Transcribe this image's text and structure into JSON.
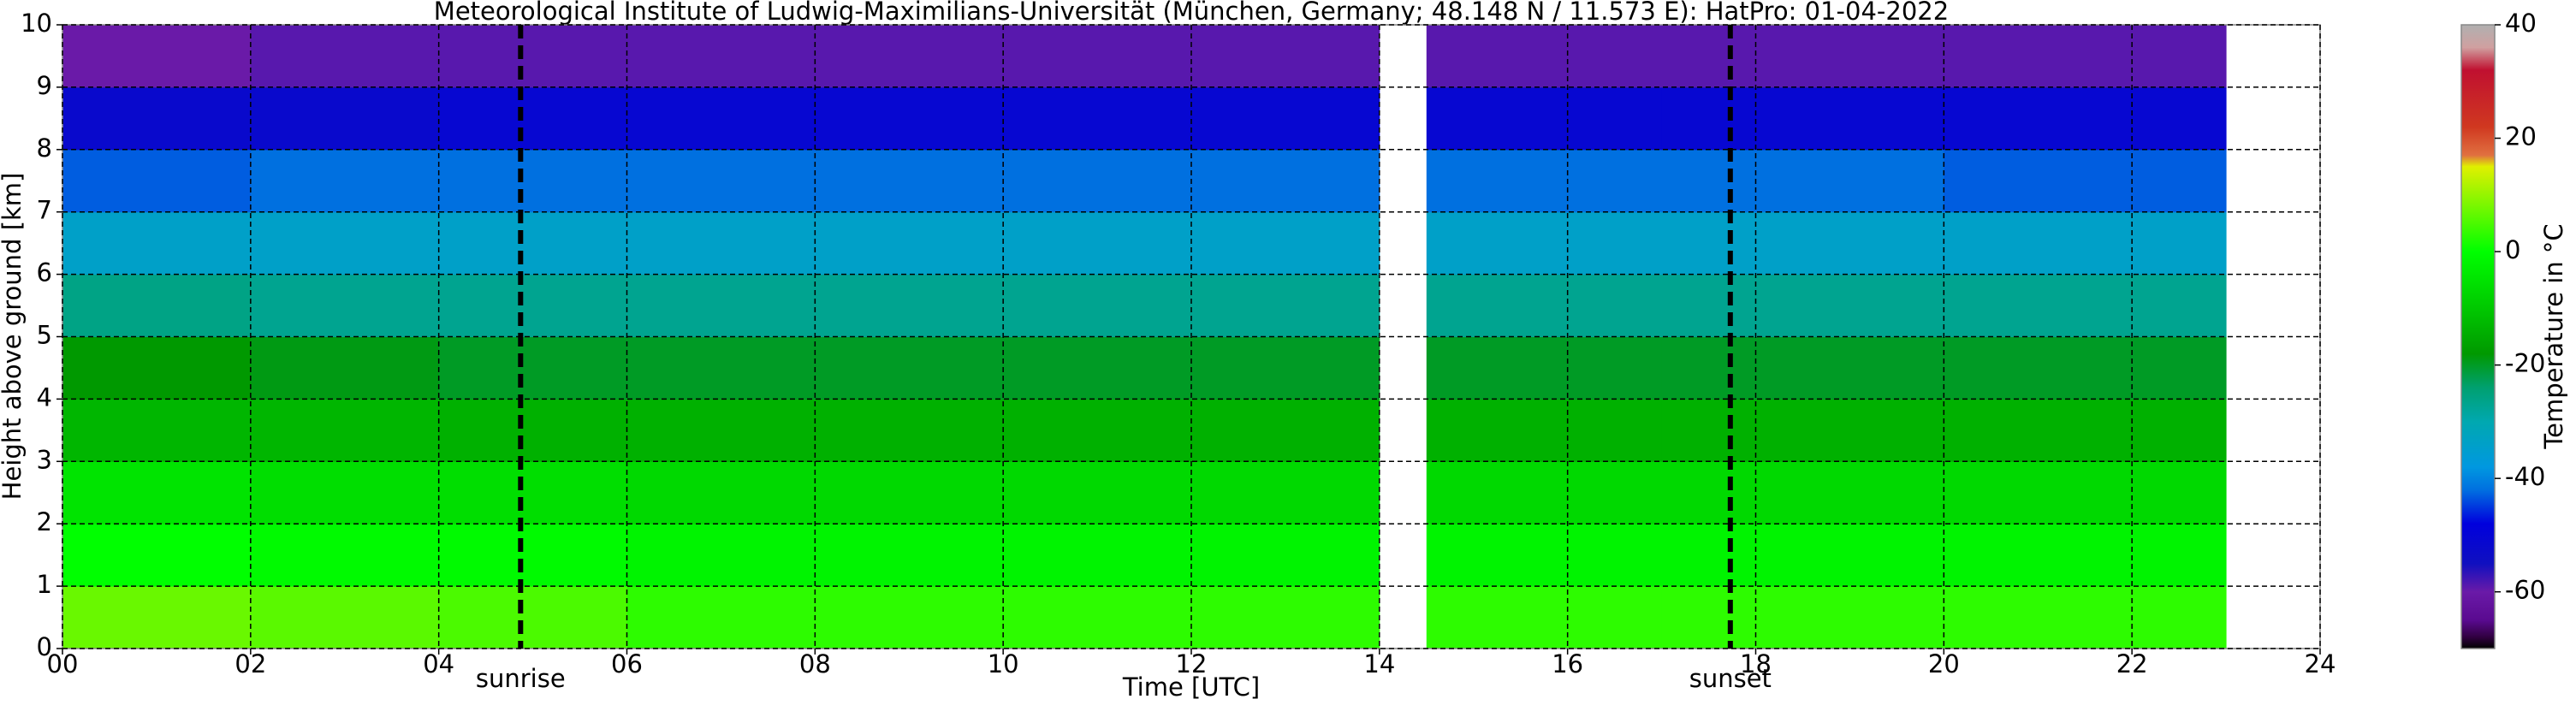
{
  "chart_data": {
    "type": "heatmap",
    "title": "Meteorological Institute of Ludwig-Maximilians-Universität (München, Germany; 48.148 N / 11.573 E):    HatPro: 01-04-2022",
    "xlabel": "Time [UTC]",
    "ylabel": "Height above ground [km]",
    "x": [
      0,
      2,
      4,
      6,
      8,
      10,
      12,
      14,
      14.5,
      17,
      20,
      23
    ],
    "y": [
      0,
      1,
      2,
      3,
      4,
      5,
      6,
      7,
      8,
      9,
      10
    ],
    "values": [
      [
        7,
        6,
        5,
        3,
        3,
        3,
        3,
        null,
        3,
        3,
        3
      ],
      [
        0,
        -1,
        -1,
        -2,
        -2,
        -2,
        -2,
        null,
        -2,
        -2,
        -2
      ],
      [
        -5,
        -6,
        -6,
        -7,
        -7,
        -7,
        -7,
        null,
        -7,
        -7,
        -7
      ],
      [
        -13,
        -13,
        -14,
        -14,
        -14,
        -14,
        -14,
        null,
        -14,
        -14,
        -14
      ],
      [
        -18,
        -19,
        -20,
        -20,
        -20,
        -20,
        -20,
        null,
        -20,
        -20,
        -20
      ],
      [
        -26,
        -27,
        -27,
        -27,
        -27,
        -27,
        -27,
        null,
        -27,
        -27,
        -27
      ],
      [
        -34,
        -34,
        -34,
        -34,
        -34,
        -34,
        -34,
        null,
        -34,
        -34,
        -34
      ],
      [
        -43,
        -42,
        -42,
        -42,
        -42,
        -42,
        -42,
        null,
        -42,
        -42,
        -43
      ],
      [
        -52,
        -52,
        -51,
        -51,
        -51,
        -51,
        -51,
        null,
        -51,
        -51,
        -51
      ],
      [
        -60,
        -59,
        -59,
        -59,
        -59,
        -59,
        -59,
        null,
        -59,
        -59,
        -59
      ]
    ],
    "xlim": [
      0,
      24
    ],
    "xticks": [
      {
        "value": 0,
        "label": "00"
      },
      {
        "value": 2,
        "label": "02"
      },
      {
        "value": 4,
        "label": "04"
      },
      {
        "value": 6,
        "label": "06"
      },
      {
        "value": 8,
        "label": "08"
      },
      10,
      12,
      14,
      16,
      18,
      20,
      22,
      24
    ],
    "ylim": [
      0,
      10
    ],
    "yticks": [
      0,
      1,
      2,
      3,
      4,
      5,
      6,
      7,
      8,
      9,
      10
    ],
    "grid": true,
    "annotations": [
      {
        "text": "sunrise",
        "x": 4.87
      },
      {
        "text": "sunset",
        "x": 17.73
      }
    ],
    "colorbar": {
      "label": "Temperature in °C",
      "lim": [
        -70,
        40
      ],
      "ticks": [
        -60,
        -40,
        -20,
        0,
        20,
        40
      ],
      "colormap": [
        [
          -70,
          "#000000"
        ],
        [
          -68,
          "#300040"
        ],
        [
          -65,
          "#5a0a90"
        ],
        [
          -60,
          "#6a1aa8"
        ],
        [
          -55,
          "#1010c0"
        ],
        [
          -48,
          "#0000dd"
        ],
        [
          -42,
          "#0070e0"
        ],
        [
          -38,
          "#0098e0"
        ],
        [
          -30,
          "#00a8b0"
        ],
        [
          -24,
          "#00a070"
        ],
        [
          -18,
          "#009900"
        ],
        [
          -10,
          "#00c800"
        ],
        [
          0,
          "#00ff00"
        ],
        [
          15,
          "#e0f000"
        ],
        [
          17,
          "#e07040"
        ],
        [
          22,
          "#d03820"
        ],
        [
          32,
          "#c01030"
        ],
        [
          36,
          "#d0a0a0"
        ],
        [
          40,
          "#b0b0b0"
        ]
      ]
    }
  }
}
